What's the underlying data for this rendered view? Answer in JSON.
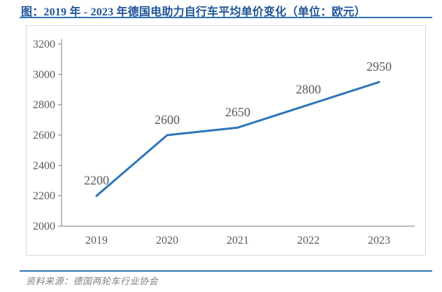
{
  "header": {
    "title": "图：2019 年 - 2023 年德国电助力自行车平均单价变化（单位：欧元）"
  },
  "footer": {
    "source": "资料来源：德国两轮车行业协会"
  },
  "colors": {
    "title_text": "#1F5496",
    "rule": "#2E74B5",
    "line": "#2E75B6",
    "axis": "#808080",
    "tick_label": "#595959",
    "data_label": "#595959",
    "panel_border": "#D9D9D9"
  },
  "chart_data": {
    "type": "line",
    "title": "2019年-2023年德国电助力自行车平均单价变化",
    "unit": "欧元",
    "categories": [
      "2019",
      "2020",
      "2021",
      "2022",
      "2023"
    ],
    "values": [
      2200,
      2600,
      2650,
      2800,
      2950
    ],
    "data_labels": [
      "2200",
      "2600",
      "2650",
      "2800",
      "2950"
    ],
    "xlabel": "",
    "ylabel": "",
    "ylim": [
      2000,
      3200
    ],
    "ytick_step": 200,
    "ytick_labels": [
      "2000",
      "2200",
      "2400",
      "2600",
      "2800",
      "3000",
      "3200"
    ],
    "grid": false,
    "legend": "none"
  }
}
